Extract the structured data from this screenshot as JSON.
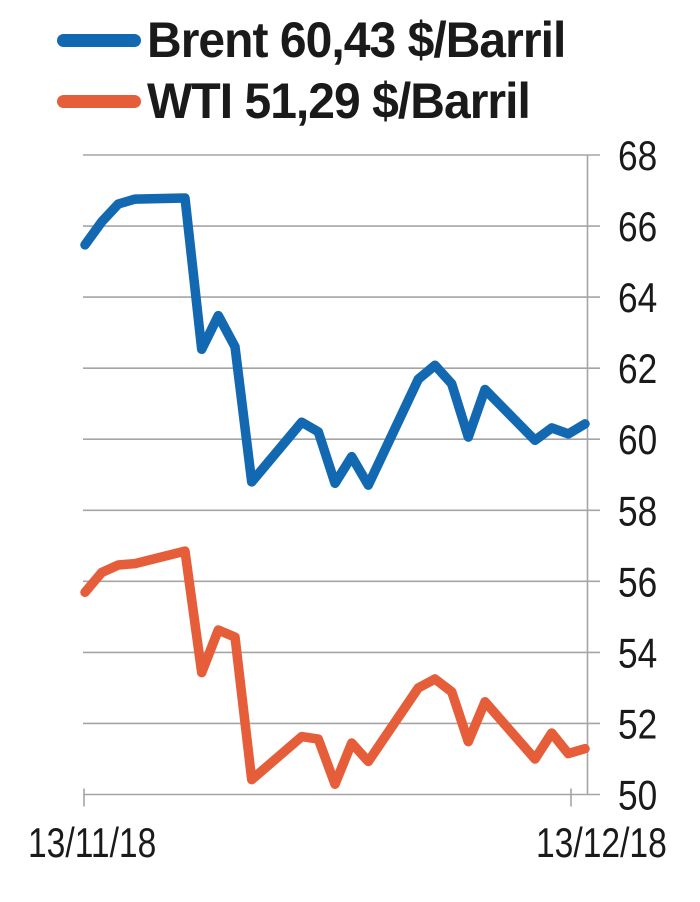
{
  "legend": {
    "items": [
      {
        "name": "Brent",
        "label": "Brent 60,43 $/Barril",
        "color": "#1268b1"
      },
      {
        "name": "WTI",
        "label": "WTI 51,29 $/Barril",
        "color": "#e55e39"
      }
    ]
  },
  "chart_data": {
    "type": "line",
    "title": "",
    "xlabel": "",
    "ylabel": "$/Barril",
    "grid": true,
    "legend_position": "top-left",
    "x_axis": {
      "start_label": "13/11/18",
      "end_label": "13/12/18",
      "unit": "date",
      "span_days": 30
    },
    "y_axis": {
      "side": "right",
      "min": 50,
      "max": 68,
      "ticks": [
        68,
        66,
        64,
        62,
        60,
        58,
        56,
        54,
        52,
        50
      ]
    },
    "series": [
      {
        "name": "Brent",
        "unit": "$/Barril",
        "current_value_label": "60,43",
        "color": "#1268b1",
        "dates": [
          "13/11/18",
          "14/11/18",
          "15/11/18",
          "16/11/18",
          "19/11/18",
          "20/11/18",
          "21/11/18",
          "22/11/18",
          "23/11/18",
          "26/11/18",
          "27/11/18",
          "28/11/18",
          "29/11/18",
          "30/11/18",
          "03/12/18",
          "04/12/18",
          "05/12/18",
          "06/12/18",
          "07/12/18",
          "10/12/18",
          "11/12/18",
          "12/12/18",
          "13/12/18"
        ],
        "day_offsets": [
          0,
          1,
          2,
          3,
          6,
          7,
          8,
          9,
          10,
          13,
          14,
          15,
          16,
          17,
          20,
          21,
          22,
          23,
          24,
          27,
          28,
          29,
          30
        ],
        "values": [
          65.47,
          66.12,
          66.62,
          66.76,
          66.79,
          62.53,
          63.48,
          62.6,
          58.8,
          60.48,
          60.21,
          58.76,
          59.51,
          58.71,
          61.69,
          62.08,
          61.56,
          60.06,
          61.4,
          59.97,
          60.32,
          60.15,
          60.43
        ]
      },
      {
        "name": "WTI",
        "unit": "$/Barril",
        "current_value_label": "51,29",
        "color": "#e55e39",
        "dates": [
          "13/11/18",
          "14/11/18",
          "15/11/18",
          "16/11/18",
          "19/11/18",
          "20/11/18",
          "21/11/18",
          "22/11/18",
          "23/11/18",
          "26/11/18",
          "27/11/18",
          "28/11/18",
          "29/11/18",
          "30/11/18",
          "03/12/18",
          "04/12/18",
          "05/12/18",
          "06/12/18",
          "07/12/18",
          "10/12/18",
          "11/12/18",
          "12/12/18",
          "13/12/18"
        ],
        "day_offsets": [
          0,
          1,
          2,
          3,
          6,
          7,
          8,
          9,
          10,
          13,
          14,
          15,
          16,
          17,
          20,
          21,
          22,
          23,
          24,
          27,
          28,
          29,
          30
        ],
        "values": [
          55.69,
          56.25,
          56.46,
          56.5,
          56.85,
          53.43,
          54.63,
          54.43,
          50.42,
          51.63,
          51.56,
          50.29,
          51.45,
          50.93,
          53.0,
          53.25,
          52.89,
          51.49,
          52.61,
          51.0,
          51.73,
          51.15,
          51.29
        ]
      }
    ]
  },
  "colors": {
    "grid": "#a5a5a5",
    "axis": "#a5a5a5",
    "text": "#1a1a1a",
    "background": "#ffffff"
  }
}
